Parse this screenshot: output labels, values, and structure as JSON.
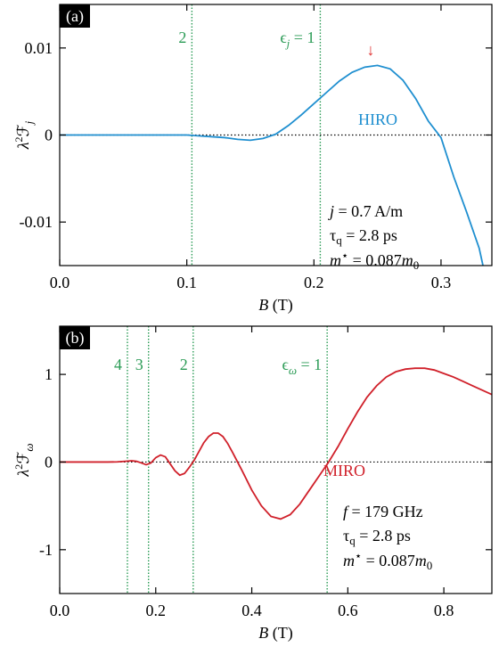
{
  "chart_data": [
    {
      "type": "line",
      "panel_label": "(a)",
      "xlabel": [
        "B",
        " (T)"
      ],
      "ylabel": [
        "λ",
        "2",
        "ℱ",
        "j"
      ],
      "x": [
        0,
        0.02,
        0.04,
        0.06,
        0.08,
        0.1,
        0.11,
        0.12,
        0.13,
        0.14,
        0.15,
        0.16,
        0.17,
        0.18,
        0.19,
        0.2,
        0.21,
        0.22,
        0.23,
        0.24,
        0.25,
        0.26,
        0.27,
        0.28,
        0.29,
        0.3,
        0.31,
        0.32,
        0.33,
        0.333
      ],
      "series": [
        {
          "name": "HIRO",
          "color": "#1f8fd0",
          "values": [
            0,
            0,
            0,
            0,
            0,
            0,
            -0.0001,
            -0.0002,
            -0.0003,
            -0.0005,
            -0.0006,
            -0.0004,
            0.0001,
            0.0011,
            0.0023,
            0.0036,
            0.0049,
            0.0062,
            0.0072,
            0.0078,
            0.008,
            0.0076,
            0.0063,
            0.0042,
            0.0016,
            -0.0003,
            -0.0048,
            -0.0088,
            -0.013,
            -0.015
          ]
        }
      ],
      "xlim": [
        0,
        0.34
      ],
      "ylim": [
        -0.015,
        0.015
      ],
      "xticks": [
        {
          "value": 0,
          "label": "0.0"
        },
        0.1,
        0.2,
        0.3
      ],
      "yticks": [
        -0.01,
        0,
        0.01
      ],
      "zero_line": true,
      "vline_color": "#2a9b55",
      "vlines": [
        {
          "x": 0.104,
          "label": [
            "2"
          ]
        },
        {
          "x": 0.205,
          "label": [
            "ϵ",
            "j",
            " = 1"
          ]
        }
      ],
      "arrow": {
        "text": "↓",
        "color": "#e03030"
      },
      "params": [
        [
          "j",
          " = 0.7 A/m"
        ],
        [
          "τ",
          "q",
          " = 2.8 ps"
        ],
        [
          "m",
          "⋆",
          " = 0.087",
          "m",
          "0"
        ]
      ]
    },
    {
      "type": "line",
      "panel_label": "(b)",
      "xlabel": [
        "B",
        " (T)"
      ],
      "ylabel": [
        "λ",
        "2",
        "ℱ",
        "ω"
      ],
      "x": [
        0,
        0.05,
        0.1,
        0.12,
        0.14,
        0.15,
        0.16,
        0.17,
        0.18,
        0.19,
        0.2,
        0.21,
        0.22,
        0.23,
        0.24,
        0.25,
        0.26,
        0.27,
        0.28,
        0.29,
        0.3,
        0.31,
        0.32,
        0.33,
        0.34,
        0.35,
        0.36,
        0.38,
        0.4,
        0.42,
        0.44,
        0.46,
        0.48,
        0.5,
        0.52,
        0.54,
        0.56,
        0.58,
        0.6,
        0.62,
        0.64,
        0.66,
        0.68,
        0.7,
        0.72,
        0.74,
        0.76,
        0.78,
        0.8,
        0.82,
        0.84,
        0.86,
        0.88,
        0.9
      ],
      "series": [
        {
          "name": "MIRO",
          "color": "#d0202a",
          "values": [
            0,
            0,
            0,
            0.002,
            0.01,
            0.015,
            0.008,
            -0.01,
            -0.03,
            -0.01,
            0.05,
            0.08,
            0.06,
            -0.02,
            -0.1,
            -0.15,
            -0.13,
            -0.06,
            0.02,
            0.12,
            0.22,
            0.29,
            0.33,
            0.33,
            0.29,
            0.21,
            0.11,
            -0.1,
            -0.32,
            -0.5,
            -0.62,
            -0.65,
            -0.6,
            -0.48,
            -0.32,
            -0.16,
            0.0,
            0.18,
            0.38,
            0.57,
            0.74,
            0.87,
            0.97,
            1.03,
            1.06,
            1.07,
            1.07,
            1.05,
            1.01,
            0.97,
            0.92,
            0.87,
            0.82,
            0.77
          ]
        }
      ],
      "xlim": [
        0,
        0.9
      ],
      "ylim": [
        -1.5,
        1.55
      ],
      "xticks": [
        {
          "value": 0,
          "label": "0.0"
        },
        0.2,
        0.4,
        0.6,
        0.8
      ],
      "yticks": [
        -1,
        0,
        1
      ],
      "zero_line": true,
      "vline_color": "#2a9b55",
      "vlines": [
        {
          "x": 0.141,
          "label": [
            "4"
          ]
        },
        {
          "x": 0.185,
          "label": [
            "3"
          ]
        },
        {
          "x": 0.278,
          "label": [
            "2"
          ]
        },
        {
          "x": 0.557,
          "label": [
            "ϵ",
            "ω",
            " = 1"
          ]
        }
      ],
      "params": [
        [
          "f",
          " = 179 GHz"
        ],
        [
          "τ",
          "q",
          " = 2.8 ps"
        ],
        [
          "m",
          "⋆",
          " = 0.087",
          "m",
          "0"
        ]
      ]
    }
  ]
}
